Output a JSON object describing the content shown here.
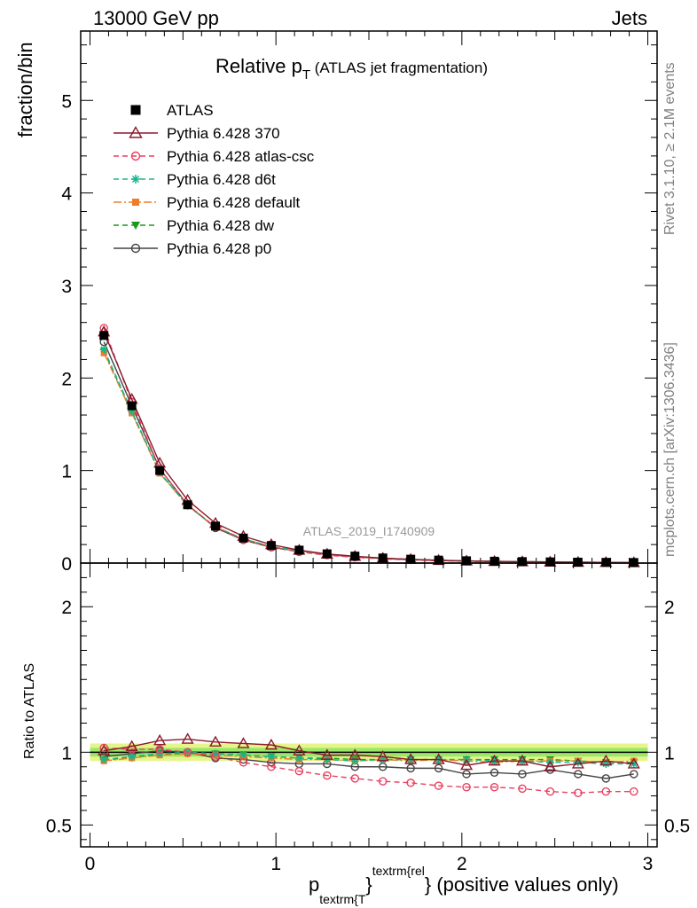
{
  "header": {
    "left": "13000 GeV pp",
    "right": "Jets"
  },
  "plot_title": {
    "main": "Relative p",
    "sub": "T",
    "rest": " (ATLAS jet fragmentation)"
  },
  "side_labels": {
    "rivet": "Rivet 3.1.10, ≥ 2.1M events",
    "mcplots": "mcplots.cern.ch [arXiv:1306.3436]"
  },
  "analysis_id": "ATLAS_2019_I1740909",
  "x_label": {
    "p": "p",
    "sub": "textrm{T",
    "sup": "textrm{rel",
    "rest": " (positive values only)"
  },
  "colors": {
    "ATLAS": "#000000",
    "Pythia 6.428 370": "#8b1a2b",
    "Pythia 6.428 atlas-csc": "#e8415f",
    "Pythia 6.428 d6t": "#19b58c",
    "Pythia 6.428 default": "#f07c2a",
    "Pythia 6.428 dw": "#1a9a1a",
    "Pythia 6.428 p0": "#444444",
    "band_outer": "#e6f58a",
    "band_inner": "#9ae76a"
  },
  "chart_data": [
    {
      "type": "line",
      "name": "main",
      "ylabel": "fraction/bin",
      "xlim": [
        -0.05,
        3.05
      ],
      "ylim": [
        0,
        5.75
      ],
      "yticks": [
        0,
        1,
        2,
        3,
        4,
        5
      ],
      "x": [
        0.075,
        0.225,
        0.375,
        0.525,
        0.675,
        0.825,
        0.975,
        1.125,
        1.275,
        1.425,
        1.575,
        1.725,
        1.875,
        2.025,
        2.175,
        2.325,
        2.475,
        2.625,
        2.775,
        2.925
      ],
      "series": [
        {
          "name": "ATLAS",
          "marker": "square",
          "dash": "none",
          "values": [
            2.46,
            1.7,
            1.0,
            0.63,
            0.4,
            0.27,
            0.19,
            0.14,
            0.1,
            0.075,
            0.055,
            0.042,
            0.032,
            0.025,
            0.02,
            0.016,
            0.013,
            0.01,
            0.008,
            0.006
          ]
        },
        {
          "name": "Pythia 6.428 370",
          "marker": "triangle-open",
          "dash": "solid",
          "values": [
            2.5,
            1.77,
            1.08,
            0.68,
            0.43,
            0.29,
            0.2,
            0.14,
            0.098,
            0.074,
            0.053,
            0.04,
            0.03,
            0.023,
            0.019,
            0.015,
            0.012,
            0.009,
            0.0075,
            0.0055
          ]
        },
        {
          "name": "Pythia 6.428 atlas-csc",
          "marker": "circle-open",
          "dash": "6,4",
          "values": [
            2.54,
            1.74,
            1.02,
            0.63,
            0.39,
            0.25,
            0.17,
            0.12,
            0.085,
            0.062,
            0.045,
            0.034,
            0.025,
            0.019,
            0.015,
            0.012,
            0.0095,
            0.0073,
            0.0059,
            0.0044
          ]
        },
        {
          "name": "Pythia 6.428 d6t",
          "marker": "star",
          "dash": "6,4",
          "values": [
            2.31,
            1.64,
            0.98,
            0.62,
            0.39,
            0.26,
            0.18,
            0.13,
            0.095,
            0.07,
            0.052,
            0.04,
            0.03,
            0.024,
            0.019,
            0.015,
            0.012,
            0.0093,
            0.0073,
            0.0055
          ]
        },
        {
          "name": "Pythia 6.428 default",
          "marker": "square-filled",
          "dash": "9,3,2,3",
          "values": [
            2.27,
            1.62,
            0.97,
            0.62,
            0.39,
            0.26,
            0.18,
            0.13,
            0.094,
            0.07,
            0.052,
            0.039,
            0.03,
            0.023,
            0.019,
            0.015,
            0.012,
            0.0093,
            0.0074,
            0.0056
          ]
        },
        {
          "name": "Pythia 6.428 dw",
          "marker": "triangle-down",
          "dash": "6,4",
          "values": [
            2.29,
            1.63,
            0.98,
            0.62,
            0.39,
            0.26,
            0.18,
            0.13,
            0.095,
            0.07,
            0.052,
            0.04,
            0.03,
            0.024,
            0.019,
            0.015,
            0.012,
            0.0093,
            0.0074,
            0.0055
          ]
        },
        {
          "name": "Pythia 6.428 p0",
          "marker": "circle-open",
          "dash": "solid",
          "values": [
            2.39,
            1.7,
            1.02,
            0.63,
            0.38,
            0.25,
            0.17,
            0.13,
            0.092,
            0.067,
            0.049,
            0.037,
            0.028,
            0.021,
            0.017,
            0.014,
            0.011,
            0.0085,
            0.0066,
            0.005
          ]
        }
      ]
    },
    {
      "type": "line",
      "name": "ratio",
      "ylabel": "Ratio to ATLAS",
      "xlim": [
        -0.05,
        3.05
      ],
      "ylim": [
        0.35,
        2.3
      ],
      "yticks": [
        0.5,
        1,
        2
      ],
      "ytick_labels": [
        "0.5",
        "1",
        "2"
      ],
      "xticks": [
        0,
        1,
        2,
        3
      ],
      "xtick_labels": [
        "0",
        "1",
        "2",
        "3"
      ],
      "x": [
        0.075,
        0.225,
        0.375,
        0.525,
        0.675,
        0.825,
        0.975,
        1.125,
        1.275,
        1.425,
        1.575,
        1.725,
        1.875,
        2.025,
        2.175,
        2.325,
        2.475,
        2.625,
        2.775,
        2.925
      ],
      "band_outer": 0.06,
      "band_inner": 0.03,
      "series": [
        {
          "name": "Pythia 6.428 370",
          "values": [
            1.01,
            1.04,
            1.08,
            1.09,
            1.07,
            1.06,
            1.05,
            1.01,
            0.98,
            0.98,
            0.97,
            0.95,
            0.95,
            0.91,
            0.94,
            0.94,
            0.9,
            0.92,
            0.94,
            0.92
          ]
        },
        {
          "name": "Pythia 6.428 atlas-csc",
          "values": [
            1.03,
            1.02,
            1.02,
            1.0,
            0.97,
            0.93,
            0.9,
            0.87,
            0.84,
            0.82,
            0.8,
            0.79,
            0.77,
            0.76,
            0.76,
            0.75,
            0.73,
            0.72,
            0.73,
            0.73
          ]
        },
        {
          "name": "Pythia 6.428 d6t",
          "values": [
            0.95,
            0.97,
            0.99,
            1.0,
            0.99,
            0.98,
            0.97,
            0.96,
            0.95,
            0.94,
            0.95,
            0.95,
            0.95,
            0.95,
            0.94,
            0.94,
            0.93,
            0.93,
            0.92,
            0.92
          ]
        },
        {
          "name": "Pythia 6.428 default",
          "values": [
            0.94,
            0.96,
            0.98,
            0.99,
            0.98,
            0.97,
            0.96,
            0.95,
            0.95,
            0.94,
            0.95,
            0.94,
            0.95,
            0.94,
            0.93,
            0.94,
            0.94,
            0.94,
            0.93,
            0.94
          ]
        },
        {
          "name": "Pythia 6.428 dw",
          "values": [
            0.95,
            0.96,
            0.99,
            0.99,
            0.99,
            0.98,
            0.97,
            0.96,
            0.96,
            0.95,
            0.95,
            0.95,
            0.95,
            0.95,
            0.95,
            0.95,
            0.95,
            0.94,
            0.93,
            0.93
          ]
        },
        {
          "name": "Pythia 6.428 p0",
          "values": [
            0.97,
            0.99,
            1.01,
            1.0,
            0.96,
            0.95,
            0.93,
            0.92,
            0.92,
            0.9,
            0.9,
            0.89,
            0.89,
            0.85,
            0.86,
            0.85,
            0.88,
            0.85,
            0.82,
            0.85
          ]
        }
      ]
    }
  ],
  "legend": {
    "placement": "top-left",
    "entries": [
      "ATLAS",
      "Pythia 6.428 370",
      "Pythia 6.428 atlas-csc",
      "Pythia 6.428 d6t",
      "Pythia 6.428 default",
      "Pythia 6.428 dw",
      "Pythia 6.428 p0"
    ]
  }
}
